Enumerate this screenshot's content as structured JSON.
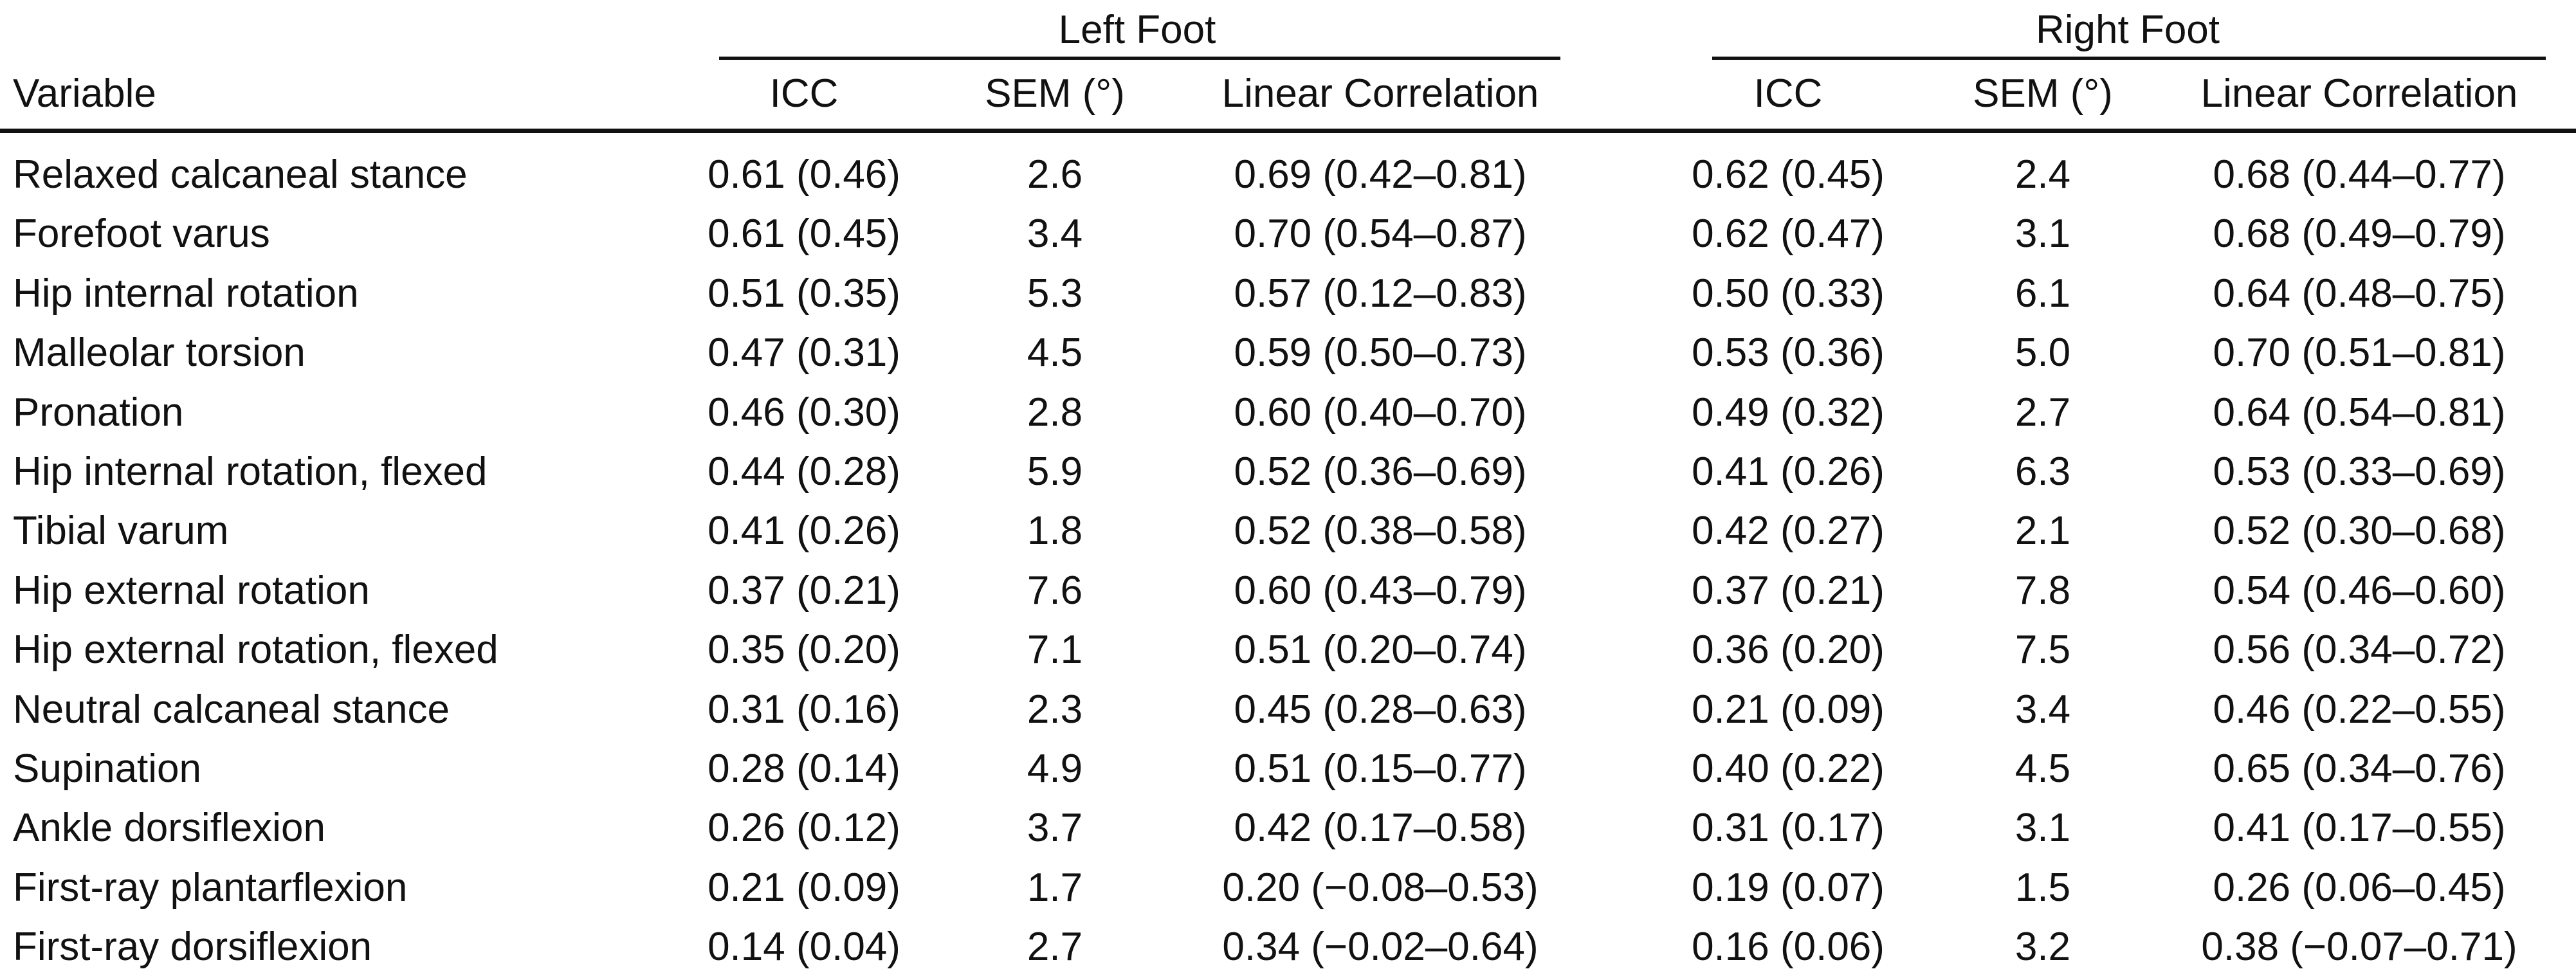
{
  "table": {
    "group_headers": [
      "Left Foot",
      "Right Foot"
    ],
    "variable_header": "Variable",
    "column_headers": [
      "ICC",
      "SEM (°)",
      "Linear Correlation",
      "ICC",
      "SEM (°)",
      "Linear Correlation"
    ],
    "rows": [
      {
        "variable": "Relaxed calcaneal stance",
        "values": [
          "0.61 (0.46)",
          "2.6",
          "0.69 (0.42–0.81)",
          "0.62 (0.45)",
          "2.4",
          "0.68 (0.44–0.77)"
        ]
      },
      {
        "variable": "Forefoot varus",
        "values": [
          "0.61 (0.45)",
          "3.4",
          "0.70 (0.54–0.87)",
          "0.62 (0.47)",
          "3.1",
          "0.68 (0.49–0.79)"
        ]
      },
      {
        "variable": "Hip internal rotation",
        "values": [
          "0.51 (0.35)",
          "5.3",
          "0.57 (0.12–0.83)",
          "0.50 (0.33)",
          "6.1",
          "0.64 (0.48–0.75)"
        ]
      },
      {
        "variable": "Malleolar torsion",
        "values": [
          "0.47 (0.31)",
          "4.5",
          "0.59 (0.50–0.73)",
          "0.53 (0.36)",
          "5.0",
          "0.70 (0.51–0.81)"
        ]
      },
      {
        "variable": "Pronation",
        "values": [
          "0.46 (0.30)",
          "2.8",
          "0.60 (0.40–0.70)",
          "0.49 (0.32)",
          "2.7",
          "0.64 (0.54–0.81)"
        ]
      },
      {
        "variable": "Hip internal rotation, flexed",
        "values": [
          "0.44 (0.28)",
          "5.9",
          "0.52 (0.36–0.69)",
          "0.41 (0.26)",
          "6.3",
          "0.53 (0.33–0.69)"
        ]
      },
      {
        "variable": "Tibial varum",
        "values": [
          "0.41 (0.26)",
          "1.8",
          "0.52 (0.38–0.58)",
          "0.42 (0.27)",
          "2.1",
          "0.52 (0.30–0.68)"
        ]
      },
      {
        "variable": "Hip external rotation",
        "values": [
          "0.37 (0.21)",
          "7.6",
          "0.60 (0.43–0.79)",
          "0.37 (0.21)",
          "7.8",
          "0.54 (0.46–0.60)"
        ]
      },
      {
        "variable": "Hip external rotation, flexed",
        "values": [
          "0.35 (0.20)",
          "7.1",
          "0.51 (0.20–0.74)",
          "0.36 (0.20)",
          "7.5",
          "0.56 (0.34–0.72)"
        ]
      },
      {
        "variable": "Neutral calcaneal stance",
        "values": [
          "0.31 (0.16)",
          "2.3",
          "0.45 (0.28–0.63)",
          "0.21 (0.09)",
          "3.4",
          "0.46 (0.22–0.55)"
        ]
      },
      {
        "variable": "Supination",
        "values": [
          "0.28 (0.14)",
          "4.9",
          "0.51 (0.15–0.77)",
          "0.40 (0.22)",
          "4.5",
          "0.65 (0.34–0.76)"
        ]
      },
      {
        "variable": "Ankle dorsiflexion",
        "values": [
          "0.26 (0.12)",
          "3.7",
          "0.42 (0.17–0.58)",
          "0.31 (0.17)",
          "3.1",
          "0.41 (0.17–0.55)"
        ]
      },
      {
        "variable": "First-ray plantarflexion",
        "values": [
          "0.21 (0.09)",
          "1.7",
          "0.20 (−0.08–0.53)",
          "0.19 (0.07)",
          "1.5",
          "0.26 (0.06–0.45)"
        ]
      },
      {
        "variable": "First-ray dorsiflexion",
        "values": [
          "0.14 (0.04)",
          "2.7",
          "0.34 (−0.02–0.64)",
          "0.16 (0.06)",
          "3.2",
          "0.38 (−0.07–0.71)"
        ]
      }
    ]
  }
}
